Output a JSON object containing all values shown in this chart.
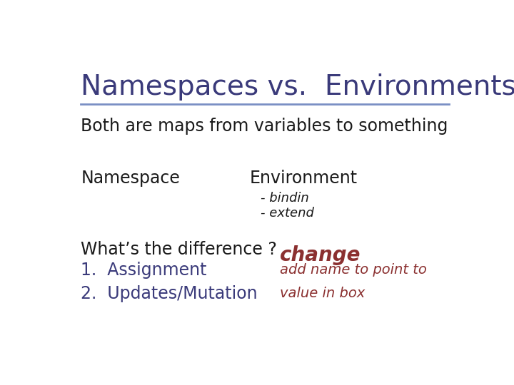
{
  "title": "Namespaces vs.  Environments",
  "title_color": "#3a3a7a",
  "title_fontsize": 28,
  "line_color": "#7a8fc4",
  "bg_color": "#ffffff",
  "subtitle": "Both are maps from variables to something",
  "subtitle_color": "#1a1a1a",
  "subtitle_fontsize": 17,
  "col1_label": "Namespace",
  "col1_color": "#1a1a1a",
  "col1_fontsize": 17,
  "col2_label": "Environment",
  "col2_color": "#1a1a1a",
  "col2_fontsize": 17,
  "env_note1": "- bindin",
  "env_note2": "- extend",
  "env_note_color": "#1a1a1a",
  "env_note_fontsize": 13,
  "difference_label": "What’s the difference ?",
  "difference_color": "#1a1a1a",
  "difference_fontsize": 17,
  "item1": "1.  Assignment",
  "item2": "2.  Updates/Mutation",
  "item_color": "#3a3a7a",
  "item_fontsize": 17,
  "handwriting_change": "change",
  "handwriting_change_color": "#8b3030",
  "handwriting_add": "add name to point to",
  "handwriting_val": "value in box",
  "handwriting_color": "#8b3030",
  "hand_change_fontsize": 20,
  "hand_note_fontsize": 14
}
